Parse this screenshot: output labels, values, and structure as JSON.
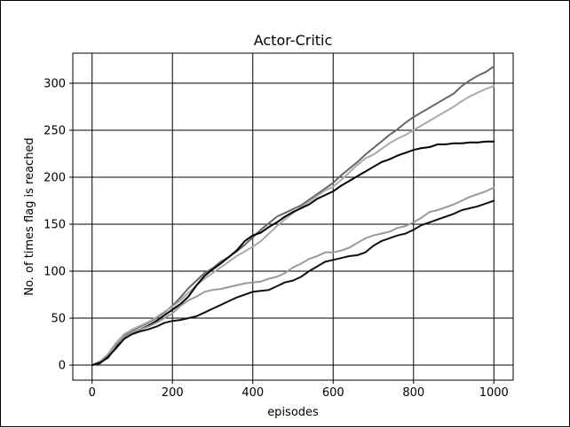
{
  "chart_data": {
    "type": "line",
    "title": "Actor-Critic",
    "xlabel": "episodes",
    "ylabel": "No. of times flag is reached",
    "xlim": [
      -48,
      1048
    ],
    "ylim": [
      -16,
      332
    ],
    "xticks": [
      0,
      200,
      400,
      600,
      800,
      1000
    ],
    "yticks": [
      0,
      50,
      100,
      150,
      200,
      250,
      300
    ],
    "grid": true,
    "legend": "none",
    "series": [
      {
        "color": "#666666",
        "x": [
          0,
          20,
          40,
          60,
          80,
          100,
          120,
          140,
          160,
          180,
          200,
          220,
          240,
          260,
          280,
          300,
          320,
          340,
          360,
          380,
          400,
          420,
          440,
          460,
          480,
          500,
          520,
          540,
          560,
          580,
          600,
          620,
          640,
          660,
          680,
          700,
          720,
          740,
          760,
          780,
          800,
          820,
          840,
          860,
          880,
          900,
          920,
          940,
          960,
          980,
          1000
        ],
        "y": [
          0,
          3,
          10,
          22,
          32,
          37,
          41,
          45,
          50,
          56,
          63,
          72,
          82,
          90,
          98,
          103,
          110,
          115,
          121,
          128,
          136,
          144,
          151,
          158,
          162,
          166,
          170,
          176,
          182,
          188,
          194,
          202,
          209,
          216,
          224,
          231,
          238,
          245,
          251,
          258,
          264,
          269,
          274,
          279,
          284,
          289,
          297,
          303,
          308,
          312,
          318
        ]
      },
      {
        "color": "#aaaaaa",
        "x": [
          0,
          20,
          40,
          60,
          80,
          100,
          120,
          140,
          160,
          180,
          200,
          220,
          240,
          260,
          280,
          300,
          320,
          340,
          360,
          380,
          400,
          420,
          440,
          460,
          480,
          500,
          520,
          540,
          560,
          580,
          600,
          620,
          640,
          660,
          680,
          700,
          720,
          740,
          760,
          780,
          800,
          820,
          840,
          860,
          880,
          900,
          920,
          940,
          960,
          980,
          1000
        ],
        "y": [
          0,
          4,
          12,
          24,
          33,
          38,
          42,
          46,
          51,
          57,
          62,
          69,
          77,
          85,
          92,
          98,
          104,
          110,
          116,
          121,
          126,
          132,
          140,
          148,
          155,
          162,
          168,
          174,
          180,
          186,
          190,
          197,
          205,
          213,
          220,
          224,
          230,
          236,
          241,
          245,
          250,
          255,
          260,
          265,
          270,
          275,
          281,
          286,
          290,
          294,
          297
        ]
      },
      {
        "color": "#000000",
        "x": [
          0,
          20,
          40,
          60,
          80,
          100,
          120,
          140,
          160,
          180,
          200,
          220,
          240,
          260,
          280,
          300,
          320,
          340,
          360,
          380,
          400,
          420,
          440,
          460,
          480,
          500,
          520,
          540,
          560,
          580,
          600,
          620,
          640,
          660,
          680,
          700,
          720,
          740,
          760,
          780,
          800,
          820,
          840,
          860,
          880,
          900,
          920,
          940,
          960,
          980,
          1000
        ],
        "y": [
          0,
          3,
          8,
          20,
          28,
          34,
          38,
          42,
          47,
          53,
          59,
          65,
          73,
          85,
          95,
          102,
          108,
          115,
          122,
          132,
          138,
          141,
          147,
          152,
          158,
          163,
          167,
          171,
          177,
          181,
          185,
          191,
          196,
          201,
          206,
          211,
          216,
          219,
          223,
          226,
          229,
          231,
          232,
          235,
          235,
          236,
          236,
          237,
          237,
          238,
          238
        ]
      },
      {
        "color": "#999999",
        "x": [
          0,
          20,
          40,
          60,
          80,
          100,
          120,
          140,
          160,
          180,
          200,
          220,
          240,
          260,
          280,
          300,
          320,
          340,
          360,
          380,
          400,
          420,
          440,
          460,
          480,
          500,
          520,
          540,
          560,
          580,
          600,
          620,
          640,
          660,
          680,
          700,
          720,
          740,
          760,
          780,
          800,
          820,
          840,
          860,
          880,
          900,
          920,
          940,
          960,
          980,
          1000
        ],
        "y": [
          0,
          2,
          10,
          22,
          30,
          35,
          38,
          41,
          45,
          50,
          55,
          63,
          69,
          73,
          78,
          80,
          81,
          83,
          85,
          87,
          88,
          89,
          92,
          94,
          98,
          104,
          108,
          113,
          116,
          120,
          120,
          122,
          125,
          130,
          135,
          138,
          140,
          142,
          146,
          148,
          152,
          157,
          163,
          165,
          168,
          171,
          175,
          179,
          182,
          185,
          189
        ]
      },
      {
        "color": "#111111",
        "x": [
          0,
          20,
          40,
          60,
          80,
          100,
          120,
          140,
          160,
          180,
          200,
          220,
          240,
          260,
          280,
          300,
          320,
          340,
          360,
          380,
          400,
          420,
          440,
          460,
          480,
          500,
          520,
          540,
          560,
          580,
          600,
          620,
          640,
          660,
          680,
          700,
          720,
          740,
          760,
          780,
          800,
          820,
          840,
          860,
          880,
          900,
          920,
          940,
          960,
          980,
          1000
        ],
        "y": [
          0,
          2,
          9,
          18,
          28,
          33,
          36,
          38,
          41,
          45,
          47,
          48,
          50,
          52,
          56,
          60,
          64,
          68,
          72,
          75,
          78,
          79,
          80,
          84,
          88,
          90,
          94,
          100,
          105,
          110,
          112,
          114,
          116,
          117,
          120,
          127,
          132,
          135,
          138,
          140,
          144,
          149,
          152,
          155,
          158,
          161,
          165,
          167,
          169,
          172,
          175
        ]
      }
    ]
  }
}
